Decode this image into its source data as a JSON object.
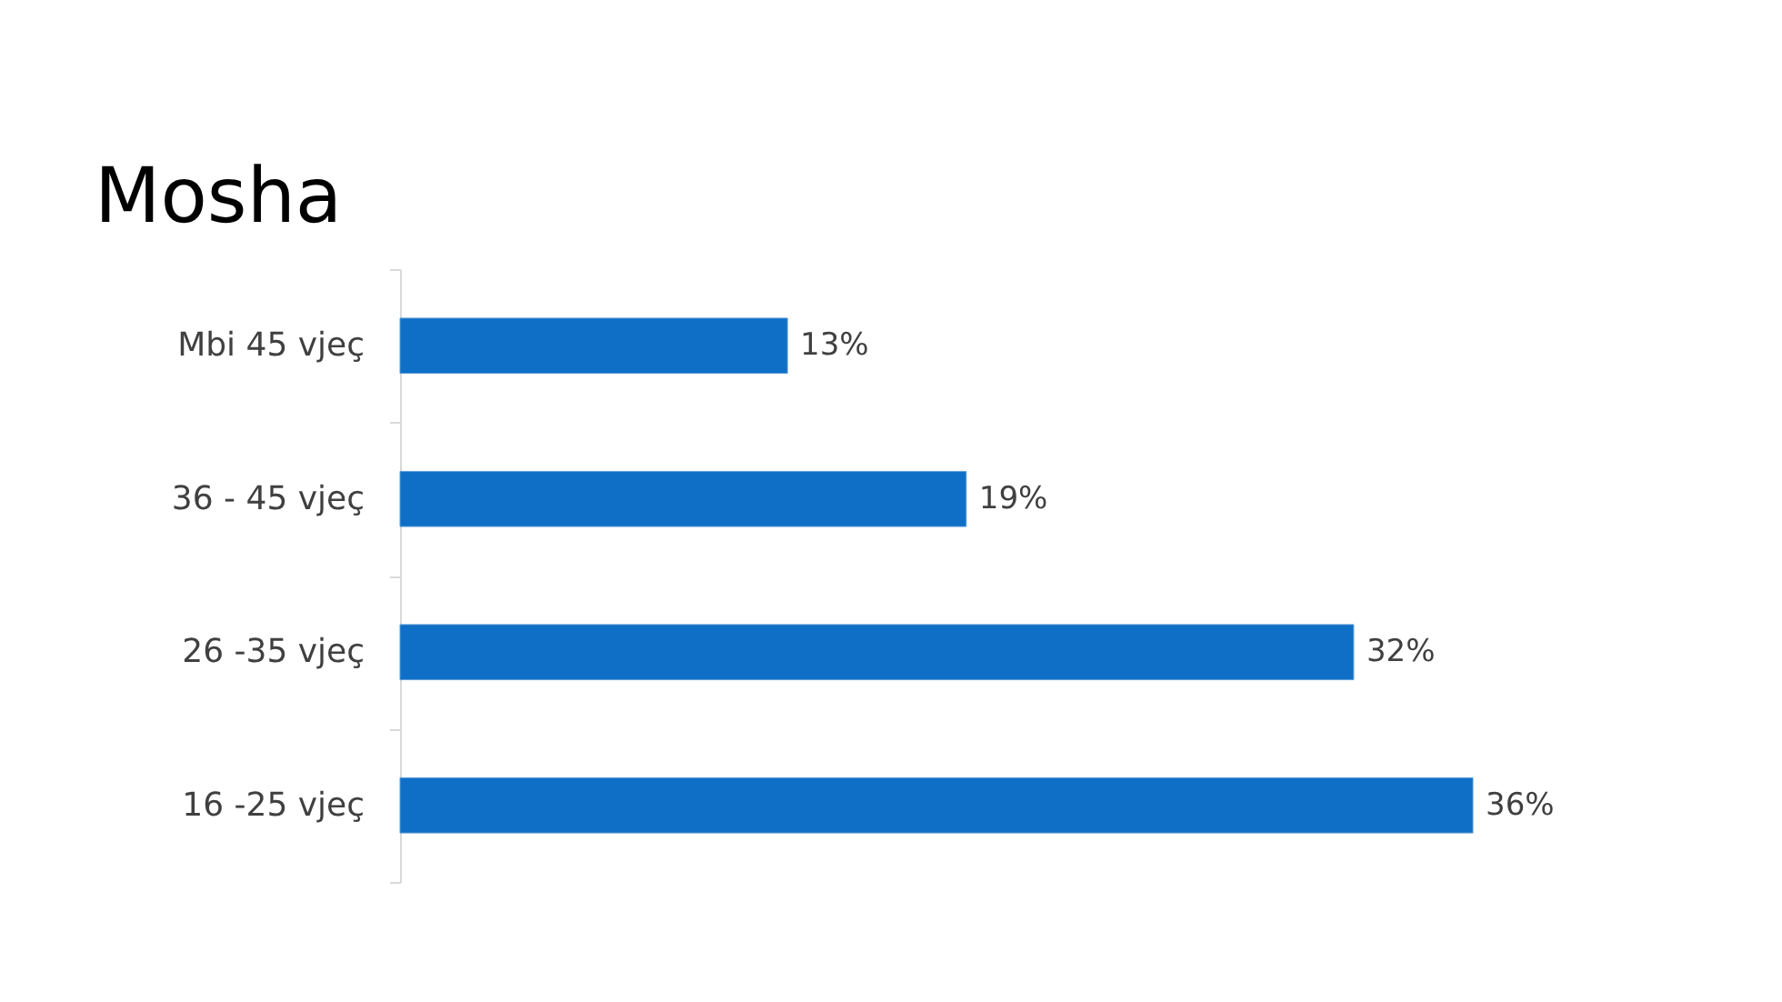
{
  "chart_data": {
    "type": "bar",
    "orientation": "horizontal",
    "title": "Mosha",
    "categories": [
      "Mbi 45 vjeç",
      "36 - 45 vjeç",
      "26 -35 vjeç",
      "16 -25 vjeç"
    ],
    "values": [
      13,
      19,
      32,
      36
    ],
    "value_labels": [
      "13%",
      "19%",
      "32%",
      "36%"
    ],
    "color": "#0f6fc6",
    "tick_labels": "y",
    "grid": false
  }
}
